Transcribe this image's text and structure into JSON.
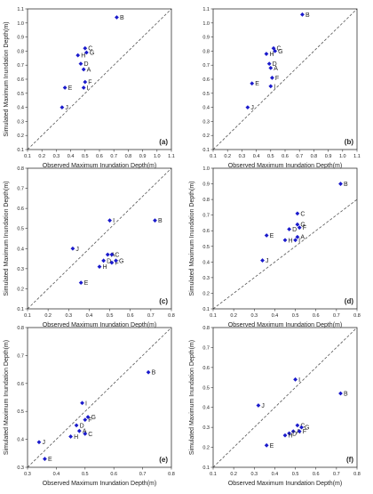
{
  "chart_data": [
    {
      "type": "scatter",
      "panel": "(a)",
      "xlabel": "Observed Maximum Inundation Depth(m)",
      "ylabel": "Simulated Maximum Inundation Depth(m)",
      "xlim": [
        0.1,
        1.1
      ],
      "ylim": [
        0.1,
        1.1
      ],
      "xticks": [
        "0.1",
        "0.2",
        "0.3",
        "0.4",
        "0.5",
        "0.6",
        "0.7",
        "0.8",
        "0.9",
        "1.0",
        "1.1"
      ],
      "yticks": [
        "0.1",
        "0.2",
        "0.3",
        "0.4",
        "0.5",
        "0.6",
        "0.7",
        "0.8",
        "0.9",
        "1.0",
        "1.1"
      ],
      "reference_line": "1:1 dashed",
      "points": [
        {
          "label": "A",
          "x": 0.49,
          "y": 0.67
        },
        {
          "label": "B",
          "x": 0.72,
          "y": 1.04
        },
        {
          "label": "C",
          "x": 0.5,
          "y": 0.82
        },
        {
          "label": "D",
          "x": 0.47,
          "y": 0.71
        },
        {
          "label": "E",
          "x": 0.36,
          "y": 0.54
        },
        {
          "label": "F",
          "x": 0.5,
          "y": 0.58
        },
        {
          "label": "G",
          "x": 0.51,
          "y": 0.79
        },
        {
          "label": "H",
          "x": 0.45,
          "y": 0.77
        },
        {
          "label": "I",
          "x": 0.49,
          "y": 0.54
        },
        {
          "label": "J",
          "x": 0.34,
          "y": 0.4
        }
      ]
    },
    {
      "type": "scatter",
      "panel": "(b)",
      "xlabel": "Observed Maximum Inundation Depth(m)",
      "ylabel": "",
      "xlim": [
        0.1,
        1.1
      ],
      "ylim": [
        0.1,
        1.1
      ],
      "xticks": [
        "0.1",
        "0.2",
        "0.3",
        "0.4",
        "0.5",
        "0.6",
        "0.7",
        "0.8",
        "0.9",
        "1.0",
        "1.1"
      ],
      "yticks": [
        "0.1",
        "0.2",
        "0.3",
        "0.4",
        "0.5",
        "0.6",
        "0.7",
        "0.8",
        "0.9",
        "1.0",
        "1.1"
      ],
      "reference_line": "1:1 dashed",
      "points": [
        {
          "label": "A",
          "x": 0.5,
          "y": 0.68
        },
        {
          "label": "B",
          "x": 0.72,
          "y": 1.06
        },
        {
          "label": "C",
          "x": 0.52,
          "y": 0.82
        },
        {
          "label": "D",
          "x": 0.49,
          "y": 0.71
        },
        {
          "label": "E",
          "x": 0.37,
          "y": 0.57
        },
        {
          "label": "F",
          "x": 0.51,
          "y": 0.61
        },
        {
          "label": "G",
          "x": 0.53,
          "y": 0.8
        },
        {
          "label": "H",
          "x": 0.47,
          "y": 0.78
        },
        {
          "label": "I",
          "x": 0.5,
          "y": 0.55
        },
        {
          "label": "J",
          "x": 0.34,
          "y": 0.4
        }
      ]
    },
    {
      "type": "scatter",
      "panel": "(c)",
      "xlabel": "Observed Maximum Inundation Depth(m)",
      "ylabel": "Simulated Maximum Inundation Depth(m)",
      "xlim": [
        0.1,
        0.8
      ],
      "ylim": [
        0.1,
        0.8
      ],
      "xticks": [
        "0.1",
        "0.2",
        "0.3",
        "0.4",
        "0.5",
        "0.6",
        "0.7",
        "0.8"
      ],
      "yticks": [
        "0.1",
        "0.2",
        "0.3",
        "0.4",
        "0.5",
        "0.6",
        "0.7",
        "0.8"
      ],
      "reference_line": "1:1 dashed",
      "points": [
        {
          "label": "A",
          "x": 0.49,
          "y": 0.37
        },
        {
          "label": "B",
          "x": 0.72,
          "y": 0.54
        },
        {
          "label": "C",
          "x": 0.51,
          "y": 0.37
        },
        {
          "label": "D",
          "x": 0.47,
          "y": 0.34
        },
        {
          "label": "E",
          "x": 0.36,
          "y": 0.23
        },
        {
          "label": "F",
          "x": 0.51,
          "y": 0.33
        },
        {
          "label": "G",
          "x": 0.53,
          "y": 0.34
        },
        {
          "label": "H",
          "x": 0.45,
          "y": 0.31
        },
        {
          "label": "I",
          "x": 0.5,
          "y": 0.54
        },
        {
          "label": "J",
          "x": 0.32,
          "y": 0.4
        }
      ]
    },
    {
      "type": "scatter",
      "panel": "(d)",
      "xlabel": "Observed Maximum Inundation Depth(m)",
      "ylabel": "Simulated Maximum Inundation Depth(m)",
      "xlim": [
        0.1,
        0.8
      ],
      "ylim": [
        0.1,
        1.0
      ],
      "xticks": [
        "0.1",
        "0.2",
        "0.3",
        "0.4",
        "0.5",
        "0.6",
        "0.7",
        "0.8"
      ],
      "yticks": [
        "0.1",
        "0.2",
        "0.3",
        "0.4",
        "0.5",
        "0.6",
        "0.7",
        "0.8",
        "0.9",
        "1.0"
      ],
      "reference_line": "1:1 dashed",
      "points": [
        {
          "label": "A",
          "x": 0.51,
          "y": 0.56
        },
        {
          "label": "B",
          "x": 0.72,
          "y": 0.9
        },
        {
          "label": "C",
          "x": 0.51,
          "y": 0.71
        },
        {
          "label": "D",
          "x": 0.47,
          "y": 0.61
        },
        {
          "label": "E",
          "x": 0.36,
          "y": 0.57
        },
        {
          "label": "F",
          "x": 0.52,
          "y": 0.62
        },
        {
          "label": "G",
          "x": 0.51,
          "y": 0.64
        },
        {
          "label": "H",
          "x": 0.45,
          "y": 0.54
        },
        {
          "label": "I",
          "x": 0.5,
          "y": 0.54
        },
        {
          "label": "J",
          "x": 0.34,
          "y": 0.41
        }
      ]
    },
    {
      "type": "scatter",
      "panel": "(e)",
      "xlabel": "Observed Maximum Inundation Depth(m)",
      "ylabel": "Simulated Maximum Inundation Depth(m)",
      "xlim": [
        0.3,
        0.8
      ],
      "ylim": [
        0.3,
        0.8
      ],
      "xticks": [
        "0.3",
        "0.4",
        "0.5",
        "0.6",
        "0.7",
        "0.8"
      ],
      "yticks": [
        "0.3",
        "0.4",
        "0.5",
        "0.6",
        "0.7",
        "0.8"
      ],
      "reference_line": "1:1 dashed",
      "points": [
        {
          "label": "A",
          "x": 0.48,
          "y": 0.43
        },
        {
          "label": "B",
          "x": 0.72,
          "y": 0.64
        },
        {
          "label": "C",
          "x": 0.5,
          "y": 0.42
        },
        {
          "label": "D",
          "x": 0.47,
          "y": 0.45
        },
        {
          "label": "E",
          "x": 0.36,
          "y": 0.33
        },
        {
          "label": "F",
          "x": 0.5,
          "y": 0.47
        },
        {
          "label": "G",
          "x": 0.51,
          "y": 0.48
        },
        {
          "label": "H",
          "x": 0.45,
          "y": 0.41
        },
        {
          "label": "I",
          "x": 0.49,
          "y": 0.53
        },
        {
          "label": "J",
          "x": 0.34,
          "y": 0.39
        }
      ]
    },
    {
      "type": "scatter",
      "panel": "(f)",
      "xlabel": "Observed Maximum Inundation Depth(m)",
      "ylabel": "Simulated Maximum Inundation Depth(m)",
      "xlim": [
        0.1,
        0.8
      ],
      "ylim": [
        0.1,
        0.8
      ],
      "xticks": [
        "0.1",
        "0.2",
        "0.3",
        "0.4",
        "0.5",
        "0.6",
        "0.7",
        "0.8"
      ],
      "yticks": [
        "0.1",
        "0.2",
        "0.3",
        "0.4",
        "0.5",
        "0.6",
        "0.7",
        "0.8"
      ],
      "reference_line": "1:1 dashed",
      "points": [
        {
          "label": "A",
          "x": 0.49,
          "y": 0.28
        },
        {
          "label": "B",
          "x": 0.72,
          "y": 0.47
        },
        {
          "label": "C",
          "x": 0.51,
          "y": 0.31
        },
        {
          "label": "D",
          "x": 0.47,
          "y": 0.27
        },
        {
          "label": "E",
          "x": 0.36,
          "y": 0.21
        },
        {
          "label": "F",
          "x": 0.52,
          "y": 0.28
        },
        {
          "label": "G",
          "x": 0.53,
          "y": 0.3
        },
        {
          "label": "H",
          "x": 0.45,
          "y": 0.26
        },
        {
          "label": "I",
          "x": 0.5,
          "y": 0.54
        },
        {
          "label": "J",
          "x": 0.32,
          "y": 0.41
        }
      ]
    }
  ],
  "colors": {
    "marker": "#1a1acc",
    "axis": "#333333",
    "reference_line": "#555555"
  }
}
